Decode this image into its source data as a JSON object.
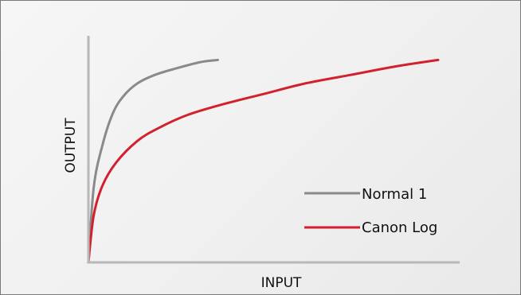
{
  "chart_data": {
    "type": "line",
    "title": "",
    "xlabel": "INPUT",
    "ylabel": "OUTPUT",
    "xlim": [
      0,
      100
    ],
    "ylim": [
      0,
      100
    ],
    "grid": false,
    "legend_position": "bottom-right",
    "series": [
      {
        "name": "Normal 1",
        "color": "#8a8a8a",
        "points": [
          [
            0,
            0
          ],
          [
            1.5,
            35
          ],
          [
            4,
            55
          ],
          [
            7,
            70
          ],
          [
            10,
            78
          ],
          [
            14,
            84
          ],
          [
            19,
            88
          ],
          [
            25,
            91
          ],
          [
            32,
            94
          ],
          [
            37,
            95
          ]
        ]
      },
      {
        "name": "Canon Log",
        "color": "#d3202e",
        "points": [
          [
            0,
            0
          ],
          [
            1.5,
            22
          ],
          [
            4,
            36
          ],
          [
            8,
            47
          ],
          [
            14,
            57
          ],
          [
            20,
            63
          ],
          [
            28,
            69
          ],
          [
            38,
            74
          ],
          [
            50,
            79
          ],
          [
            62,
            84
          ],
          [
            75,
            88
          ],
          [
            88,
            92
          ],
          [
            100,
            95
          ]
        ]
      }
    ]
  }
}
